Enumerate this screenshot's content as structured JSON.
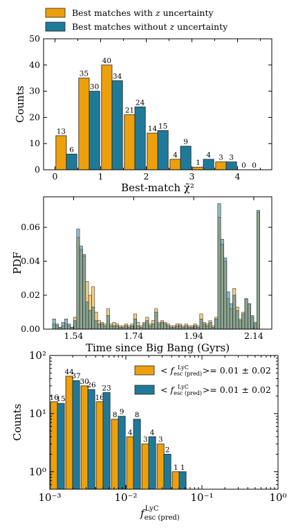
{
  "colors": {
    "orange": "#eda00b",
    "blue": "#1f7a99",
    "edge": "#222222"
  },
  "chart_data": [
    {
      "type": "bar",
      "xlabel": "Best-match χ̃²",
      "ylabel": "Counts",
      "xlim": [
        -0.25,
        4.75
      ],
      "ylim": [
        0,
        50
      ],
      "xticks": [
        0,
        1,
        2,
        3,
        4
      ],
      "yticks": [
        0,
        10,
        20,
        30,
        40,
        50
      ],
      "bin_edges": [
        0,
        0.5,
        1.0,
        1.5,
        2.0,
        2.5,
        3.0,
        3.5,
        4.0,
        4.5
      ],
      "legend_position": "top-left (above plot)",
      "series": [
        {
          "name": "Best matches with z uncertainty",
          "color_key": "orange",
          "values": [
            13,
            35,
            40,
            21,
            14,
            4,
            1,
            3,
            0
          ]
        },
        {
          "name": "Best matches without z uncertainty",
          "color_key": "blue",
          "values": [
            6,
            30,
            34,
            24,
            15,
            9,
            4,
            3,
            0
          ]
        }
      ]
    },
    {
      "type": "bar",
      "xlabel": "Time since Big Bang (Gyrs)",
      "ylabel": "PDF",
      "xlim": [
        1.44,
        2.2
      ],
      "ylim": [
        0,
        0.078
      ],
      "xticks": [
        1.54,
        1.74,
        1.94,
        2.14
      ],
      "yticks": [
        0.0,
        0.02,
        0.04,
        0.06
      ],
      "bin_start": 1.47,
      "bin_width": 0.01,
      "series": [
        {
          "name": "",
          "color_key": "orange",
          "values": [
            0.003,
            0.002,
            0.001,
            0.002,
            0.003,
            0.002,
            0.001,
            0.007,
            0.054,
            0.047,
            0.043,
            0.028,
            0.02,
            0.025,
            0.01,
            0.005,
            0.004,
            0.003,
            0.012,
            0.003,
            0.004,
            0.003,
            0.002,
            0.002,
            0.003,
            0.002,
            0.003,
            0.009,
            0.004,
            0.002,
            0.004,
            0.007,
            0.003,
            0.005,
            0.012,
            0.004,
            0.005,
            0.004,
            0.003,
            0.002,
            0.002,
            0.003,
            0.003,
            0.002,
            0.003,
            0.002,
            0.002,
            0.003,
            0.002,
            0.009,
            0.004,
            0.003,
            0.005,
            0.002,
            0.007,
            0.066,
            0.05,
            0.04,
            0.018,
            0.012,
            0.024,
            0.013,
            0.006,
            0.01,
            0.018,
            0.015,
            0.007,
            0.003,
            0.069
          ]
        },
        {
          "name": "",
          "color_key": "blue",
          "values": [
            0.006,
            0.003,
            0.001,
            0.004,
            0.006,
            0.003,
            0.001,
            0.005,
            0.059,
            0.049,
            0.044,
            0.016,
            0.011,
            0.013,
            0.005,
            0.003,
            0.003,
            0.002,
            0.008,
            0.002,
            0.002,
            0.002,
            0.001,
            0.001,
            0.002,
            0.001,
            0.002,
            0.006,
            0.002,
            0.001,
            0.003,
            0.005,
            0.002,
            0.003,
            0.01,
            0.003,
            0.004,
            0.003,
            0.002,
            0.001,
            0.001,
            0.002,
            0.002,
            0.001,
            0.002,
            0.001,
            0.001,
            0.002,
            0.001,
            0.006,
            0.003,
            0.002,
            0.004,
            0.001,
            0.006,
            0.074,
            0.053,
            0.042,
            0.022,
            0.015,
            0.02,
            0.011,
            0.005,
            0.009,
            0.018,
            0.015,
            0.008,
            0.004,
            0.07
          ]
        }
      ]
    },
    {
      "type": "bar",
      "xlabel": "f esc (pred) LyC",
      "ylabel": "Counts",
      "xscale": "log",
      "yscale": "log",
      "xlim": [
        0.001,
        1
      ],
      "ylim": [
        0.5,
        100
      ],
      "xtick_labels": [
        "10⁻³",
        "10⁻²",
        "10⁻¹",
        "10⁰"
      ],
      "ytick_labels": [
        "10⁰",
        "10¹",
        "10²"
      ],
      "log_bin_start": -3,
      "log_bin_width": 0.2,
      "legend_position": "upper right",
      "series": [
        {
          "name": "< f esc (pred) LyC >= 0.01 ± 0.02",
          "color_key": "orange",
          "values": [
            16,
            44,
            30,
            16,
            8,
            4,
            3,
            3,
            1
          ]
        },
        {
          "name": "< f esc (pred) LyC >= 0.01 ± 0.02",
          "color_key": "blue",
          "values": [
            15,
            37,
            26,
            23,
            9,
            8,
            4,
            2,
            1
          ]
        }
      ]
    }
  ]
}
